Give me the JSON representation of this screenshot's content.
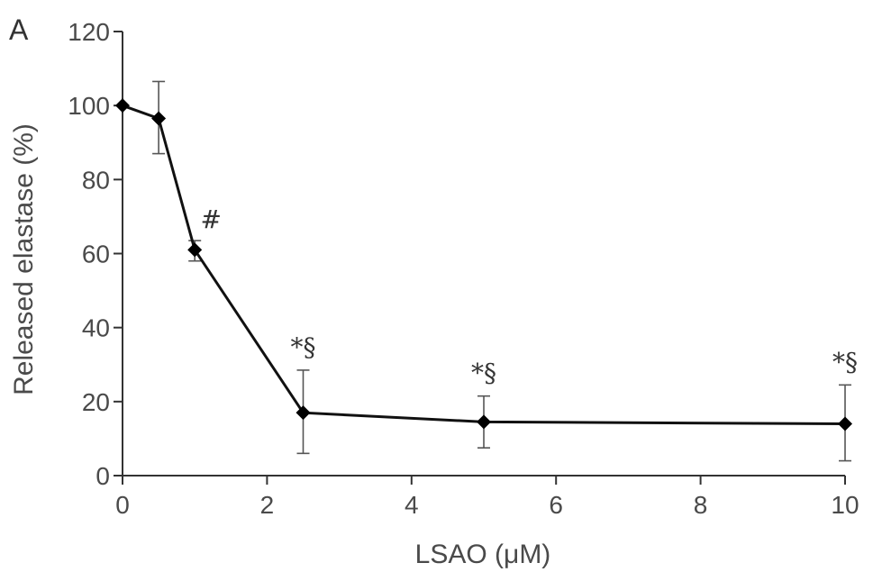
{
  "chart_data": {
    "type": "line",
    "panel_label": "A",
    "xlabel": "LSAO (μM)",
    "ylabel": "Released elastase (%)",
    "xlim": [
      0,
      10
    ],
    "ylim": [
      0,
      120
    ],
    "xticks": [
      0,
      2,
      4,
      6,
      8,
      10
    ],
    "yticks": [
      0,
      20,
      40,
      60,
      80,
      100,
      120
    ],
    "grid": false,
    "series": [
      {
        "x": [
          0,
          0.5,
          1,
          2.5,
          5,
          10
        ],
        "y": [
          100,
          96.5,
          61,
          17,
          14.5,
          14
        ],
        "err_upper": [
          100,
          106.5,
          63.5,
          28.5,
          21.5,
          24.5
        ],
        "err_lower": [
          100,
          87,
          58,
          6,
          7.5,
          4
        ],
        "annotations": [
          "",
          "",
          "#",
          "*§",
          "*§",
          "*§"
        ]
      }
    ],
    "colors": {
      "line": "#111111",
      "marker": "#000000",
      "axis": "#333333",
      "text": "#4a4a4a"
    }
  }
}
